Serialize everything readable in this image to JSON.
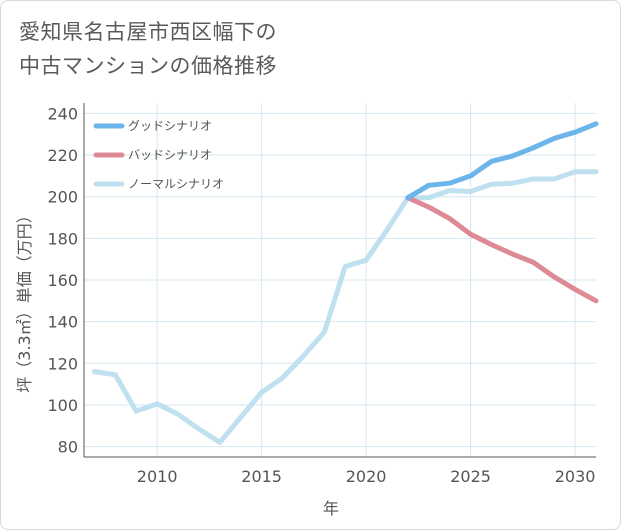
{
  "title_lines": [
    "愛知県名古屋市西区幅下の",
    "中古マンションの価格推移"
  ],
  "colors": {
    "good": "#6cb5ea",
    "bad": "#dc8b96",
    "normal": "#bfe0ef",
    "grid": "#d6e7f0",
    "axis": "#555555"
  },
  "chart_data": {
    "type": "line",
    "title": "愛知県名古屋市西区幅下の中古マンションの価格推移",
    "xlabel": "年",
    "ylabel": "坪（3.3㎡）単価（万円）",
    "xlim": [
      2006.5,
      2031
    ],
    "ylim": [
      75,
      245
    ],
    "xticks": [
      2010,
      2015,
      2020,
      2025,
      2030
    ],
    "yticks": [
      80,
      100,
      120,
      140,
      160,
      180,
      200,
      220,
      240
    ],
    "xtick_labels": [
      "2010",
      "2015",
      "2020",
      "2025",
      "2030"
    ],
    "ytick_labels": [
      "80",
      "100",
      "120",
      "140",
      "160",
      "180",
      "200",
      "220",
      "240"
    ],
    "grid": true,
    "legend_position": "top-left",
    "series": [
      {
        "name": "グッドシナリオ",
        "key": "good",
        "x": [
          2022,
          2023,
          2024,
          2025,
          2026,
          2027,
          2028,
          2029,
          2030,
          2031
        ],
        "y": [
          199.5,
          205.5,
          206.5,
          210,
          217,
          219.5,
          223.5,
          228,
          231,
          235
        ]
      },
      {
        "name": "バッドシナリオ",
        "key": "bad",
        "x": [
          2022,
          2023,
          2024,
          2025,
          2026,
          2027,
          2028,
          2029,
          2030,
          2031
        ],
        "y": [
          199.5,
          195,
          189.5,
          182,
          177,
          172.5,
          168.5,
          161.5,
          155.5,
          150
        ]
      },
      {
        "name": "ノーマルシナリオ",
        "key": "normal",
        "x": [
          2007,
          2008,
          2009,
          2010,
          2011,
          2012,
          2013,
          2014,
          2015,
          2016,
          2017,
          2018,
          2019,
          2020,
          2021,
          2022,
          2023,
          2024,
          2025,
          2026,
          2027,
          2028,
          2029,
          2030,
          2031
        ],
        "y": [
          116,
          114.5,
          97,
          100.5,
          95.5,
          88.5,
          82,
          94,
          106,
          113,
          123.5,
          135,
          166.5,
          169.5,
          184,
          199.5,
          199.5,
          203,
          202.5,
          206,
          206.5,
          208.5,
          208.5,
          212,
          212
        ]
      }
    ]
  }
}
